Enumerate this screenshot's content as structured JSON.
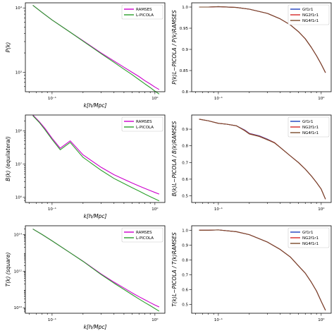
{
  "colors": {
    "magenta": "#cc00cc",
    "green": "#2ca02c",
    "blue": "#1f3fbf",
    "red": "#d62728",
    "brown": "#7a4a2a"
  },
  "chart_data": [
    {
      "id": "pk",
      "type": "line",
      "xlabel": "k[h/Mpc]",
      "ylabel": "P(k)",
      "xscale": "log",
      "yscale": "log",
      "xlim": [
        0.055,
        1.25
      ],
      "ylim": [
        500,
        12000
      ],
      "xticks": [
        {
          "v": 0.1,
          "t": "10⁻¹"
        },
        {
          "v": 1,
          "t": "10⁰"
        }
      ],
      "yticks": [
        {
          "v": 1000,
          "t": "10³"
        },
        {
          "v": 10000,
          "t": "10⁴"
        }
      ],
      "legend": "top-right",
      "x": [
        0.065,
        0.08,
        0.1,
        0.15,
        0.2,
        0.3,
        0.4,
        0.5,
        0.6,
        0.7,
        0.8,
        0.9,
        1.0,
        1.1
      ],
      "series": [
        {
          "name": "RAMSES",
          "color": "magenta",
          "values": [
            11000,
            8500,
            6500,
            4200,
            3100,
            2000,
            1500,
            1200,
            1000,
            860,
            740,
            660,
            590,
            540
          ]
        },
        {
          "name": "L-PICOLA",
          "color": "green",
          "values": [
            11000,
            8500,
            6500,
            4200,
            3050,
            1950,
            1430,
            1120,
            920,
            770,
            660,
            580,
            510,
            460
          ]
        }
      ]
    },
    {
      "id": "pk_ratio",
      "type": "line",
      "ylabel": "P(k)L−PICOLA / P(k)RAMSES",
      "xscale": "log",
      "yscale": "linear",
      "xlim": [
        0.055,
        1.25
      ],
      "ylim": [
        0.8,
        1.01
      ],
      "xticks": [
        {
          "v": 0.1,
          "t": "10⁻¹"
        },
        {
          "v": 1,
          "t": "10⁰"
        }
      ],
      "yticks": [
        {
          "v": 0.8,
          "t": "0.8"
        },
        {
          "v": 0.85,
          "t": "0.85"
        },
        {
          "v": 0.9,
          "t": "0.9"
        },
        {
          "v": 0.95,
          "t": "0.95"
        },
        {
          "v": 1.0,
          "t": "1.0"
        }
      ],
      "legend": "top-right",
      "x": [
        0.065,
        0.08,
        0.1,
        0.15,
        0.2,
        0.3,
        0.4,
        0.5,
        0.6,
        0.7,
        0.8,
        0.9,
        1.0,
        1.1
      ],
      "series": [
        {
          "name": "Gf1r1",
          "color": "blue",
          "values": [
            1.0,
            1.0,
            1.001,
            0.999,
            0.995,
            0.985,
            0.972,
            0.958,
            0.942,
            0.925,
            0.905,
            0.885,
            0.865,
            0.845
          ]
        },
        {
          "name": "NG2f1r1",
          "color": "red",
          "values": [
            1.0,
            1.0,
            1.001,
            0.999,
            0.995,
            0.985,
            0.972,
            0.958,
            0.942,
            0.925,
            0.905,
            0.885,
            0.865,
            0.845
          ]
        },
        {
          "name": "NG4f1r1",
          "color": "brown",
          "values": [
            1.0,
            1.0,
            1.001,
            0.999,
            0.995,
            0.985,
            0.972,
            0.958,
            0.942,
            0.925,
            0.905,
            0.885,
            0.865,
            0.845
          ]
        }
      ]
    },
    {
      "id": "bk",
      "type": "line",
      "xlabel": "k[h/Mpc]",
      "ylabel": "B(k) (equilateral)",
      "xscale": "log",
      "yscale": "log",
      "xlim": [
        0.055,
        1.25
      ],
      "ylim": [
        700000,
        300000000
      ],
      "xticks": [
        {
          "v": 0.1,
          "t": "10⁻¹"
        },
        {
          "v": 1,
          "t": "10⁰"
        }
      ],
      "yticks": [
        {
          "v": 1000000,
          "t": "10⁶"
        },
        {
          "v": 10000000,
          "t": "10⁷"
        },
        {
          "v": 100000000,
          "t": "10⁸"
        }
      ],
      "legend": "top-right",
      "x": [
        0.065,
        0.075,
        0.085,
        0.1,
        0.12,
        0.15,
        0.2,
        0.3,
        0.4,
        0.5,
        0.6,
        0.7,
        0.8,
        0.9,
        1.0,
        1.1
      ],
      "series": [
        {
          "name": "RAMSES",
          "color": "magenta",
          "values": [
            300000000,
            190000000,
            120000000,
            60000000,
            30000000,
            50000000,
            19000000,
            8000000,
            4800000,
            3500000,
            2700000,
            2200000,
            1850000,
            1600000,
            1400000,
            1250000
          ]
        },
        {
          "name": "L-PICOLA",
          "color": "green",
          "values": [
            285000000,
            180000000,
            110000000,
            55000000,
            27000000,
            45000000,
            16000000,
            6500000,
            3700000,
            2600000,
            1950000,
            1550000,
            1250000,
            1050000,
            900000,
            780000
          ]
        }
      ]
    },
    {
      "id": "bk_ratio",
      "type": "line",
      "ylabel": "B(k)L−PICOLA / B(k)RAMSES",
      "xscale": "log",
      "yscale": "linear",
      "xlim": [
        0.055,
        1.25
      ],
      "ylim": [
        0.46,
        0.985
      ],
      "xticks": [
        {
          "v": 0.1,
          "t": "10⁻¹"
        },
        {
          "v": 1,
          "t": "10⁰"
        }
      ],
      "yticks": [
        {
          "v": 0.5,
          "t": "0.5"
        },
        {
          "v": 0.6,
          "t": "0.6"
        },
        {
          "v": 0.7,
          "t": "0.7"
        },
        {
          "v": 0.8,
          "t": "0.8"
        },
        {
          "v": 0.9,
          "t": "0.9"
        }
      ],
      "legend": "top-right",
      "x": [
        0.065,
        0.08,
        0.1,
        0.12,
        0.15,
        0.18,
        0.2,
        0.25,
        0.3,
        0.35,
        0.4,
        0.5,
        0.6,
        0.7,
        0.8,
        0.9,
        1.0,
        1.1
      ],
      "series": [
        {
          "name": "Gf1r1",
          "color": "blue",
          "values": [
            0.96,
            0.95,
            0.935,
            0.93,
            0.92,
            0.895,
            0.875,
            0.86,
            0.84,
            0.82,
            0.79,
            0.74,
            0.7,
            0.66,
            0.62,
            0.58,
            0.54,
            0.48
          ]
        },
        {
          "name": "NG2f1r1",
          "color": "red",
          "values": [
            0.96,
            0.95,
            0.935,
            0.93,
            0.92,
            0.893,
            0.873,
            0.858,
            0.838,
            0.82,
            0.79,
            0.74,
            0.7,
            0.66,
            0.62,
            0.58,
            0.54,
            0.48
          ]
        },
        {
          "name": "NG4f1r1",
          "color": "brown",
          "values": [
            0.96,
            0.95,
            0.935,
            0.93,
            0.92,
            0.891,
            0.871,
            0.856,
            0.836,
            0.818,
            0.79,
            0.74,
            0.7,
            0.66,
            0.62,
            0.58,
            0.54,
            0.48
          ]
        }
      ]
    },
    {
      "id": "tk",
      "type": "line",
      "xlabel": "k[h/Mpc]",
      "ylabel": "T(k) (square)",
      "xscale": "log",
      "yscale": "log",
      "xlim": [
        0.055,
        1.25
      ],
      "ylim": 5000000000.0,
      "ylim_range": [
        5000000000,
        300000000000000
      ],
      "xticks": [
        {
          "v": 0.1,
          "t": "10⁻¹"
        },
        {
          "v": 1,
          "t": "10⁰"
        }
      ],
      "yticks": [
        {
          "v": 10000000000,
          "t": "10¹⁰"
        },
        {
          "v": 1000000000000,
          "t": "10¹²"
        },
        {
          "v": 100000000000000,
          "t": "10¹⁴"
        }
      ],
      "legend": "top-right",
      "x": [
        0.065,
        0.08,
        0.1,
        0.15,
        0.2,
        0.3,
        0.4,
        0.5,
        0.6,
        0.7,
        0.8,
        0.9,
        1.0,
        1.1
      ],
      "series": [
        {
          "name": "RAMSES",
          "color": "magenta",
          "values": [
            200000000000000,
            100000000000000,
            45000000000000,
            10000000000000,
            3500000000000,
            700000000000,
            250000000000,
            120000000000,
            65000000000,
            40000000000,
            27000000000,
            19000000000,
            14000000000,
            11000000000
          ]
        },
        {
          "name": "L-PICOLA",
          "color": "green",
          "values": [
            200000000000000,
            100000000000000,
            45000000000000,
            10000000000000,
            3400000000000,
            650000000000,
            220000000000,
            100000000000,
            52000000000,
            30000000000,
            19000000000,
            13000000000,
            9000000000,
            6500000000
          ]
        }
      ]
    },
    {
      "id": "tk_ratio",
      "type": "line",
      "ylabel": "T(k)L−PICOLA / T(k)RAMSES",
      "xscale": "log",
      "yscale": "linear",
      "xlim": [
        0.055,
        1.25
      ],
      "ylim": [
        0.44,
        1.03
      ],
      "xticks": [
        {
          "v": 0.1,
          "t": "10⁻¹"
        },
        {
          "v": 1,
          "t": "10⁰"
        }
      ],
      "yticks": [
        {
          "v": 0.5,
          "t": "0.5"
        },
        {
          "v": 0.6,
          "t": "0.6"
        },
        {
          "v": 0.7,
          "t": "0.7"
        },
        {
          "v": 0.8,
          "t": "0.8"
        },
        {
          "v": 0.9,
          "t": "0.9"
        },
        {
          "v": 1.0,
          "t": "1.0"
        }
      ],
      "legend": "top-right",
      "x": [
        0.065,
        0.08,
        0.1,
        0.15,
        0.2,
        0.3,
        0.4,
        0.5,
        0.6,
        0.7,
        0.8,
        0.9,
        1.0,
        1.1
      ],
      "series": [
        {
          "name": "Gf1r1",
          "color": "blue",
          "values": [
            1.0,
            1.0,
            1.002,
            0.99,
            0.97,
            0.92,
            0.87,
            0.82,
            0.76,
            0.71,
            0.65,
            0.59,
            0.52,
            0.46
          ]
        },
        {
          "name": "NG2f1r1",
          "color": "red",
          "values": [
            1.0,
            1.0,
            1.002,
            0.99,
            0.97,
            0.92,
            0.87,
            0.82,
            0.76,
            0.71,
            0.65,
            0.59,
            0.52,
            0.46
          ]
        },
        {
          "name": "NG4f1r1",
          "color": "brown",
          "values": [
            1.0,
            1.0,
            1.002,
            0.99,
            0.97,
            0.92,
            0.87,
            0.82,
            0.76,
            0.71,
            0.65,
            0.59,
            0.52,
            0.46
          ]
        }
      ]
    }
  ]
}
